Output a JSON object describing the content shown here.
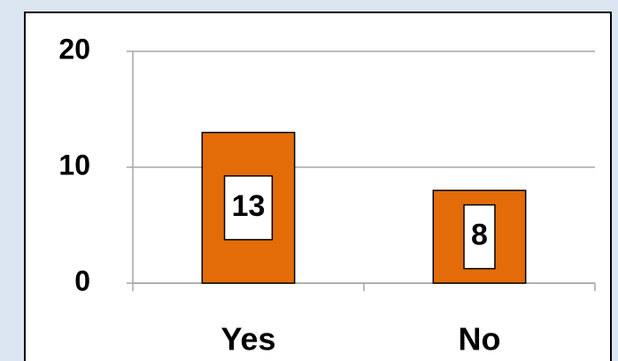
{
  "chart_data": {
    "type": "bar",
    "categories": [
      "Yes",
      "No"
    ],
    "values": [
      13,
      8
    ],
    "color": "#e36c09",
    "ylim": [
      0,
      20
    ],
    "yticks": [
      0,
      10,
      20
    ],
    "grid": true
  }
}
